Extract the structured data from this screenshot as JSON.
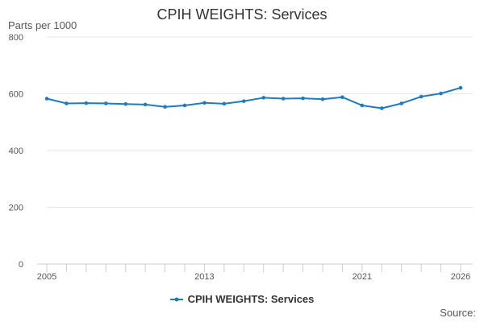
{
  "title": "CPIH WEIGHTS: Services",
  "y_unit": "Parts per 1000",
  "source_label": "Source:",
  "colors": {
    "series": "#1f7bbf",
    "grid": "#e6e6e6",
    "axis": "#cccccc"
  },
  "chart_data": {
    "type": "line",
    "title": "CPIH WEIGHTS: Services",
    "ylabel": "Parts per 1000",
    "xlabel": "",
    "ylim": [
      0,
      800
    ],
    "yticks": [
      0,
      200,
      400,
      600,
      800
    ],
    "xlim": [
      2005,
      2026
    ],
    "xtick_labels": [
      "2005",
      "2013",
      "2021",
      "2026"
    ],
    "grid": "horizontal",
    "legend_position": "bottom",
    "series": [
      {
        "name": "CPIH WEIGHTS: Services",
        "x": [
          2005,
          2006,
          2007,
          2008,
          2009,
          2010,
          2011,
          2012,
          2013,
          2014,
          2015,
          2016,
          2017,
          2018,
          2019,
          2020,
          2021,
          2022,
          2023,
          2024,
          2025,
          2026
        ],
        "values": [
          583,
          566,
          567,
          566,
          564,
          562,
          554,
          559,
          568,
          565,
          574,
          586,
          583,
          584,
          581,
          588,
          559,
          549,
          566,
          590,
          601,
          621
        ]
      }
    ]
  }
}
